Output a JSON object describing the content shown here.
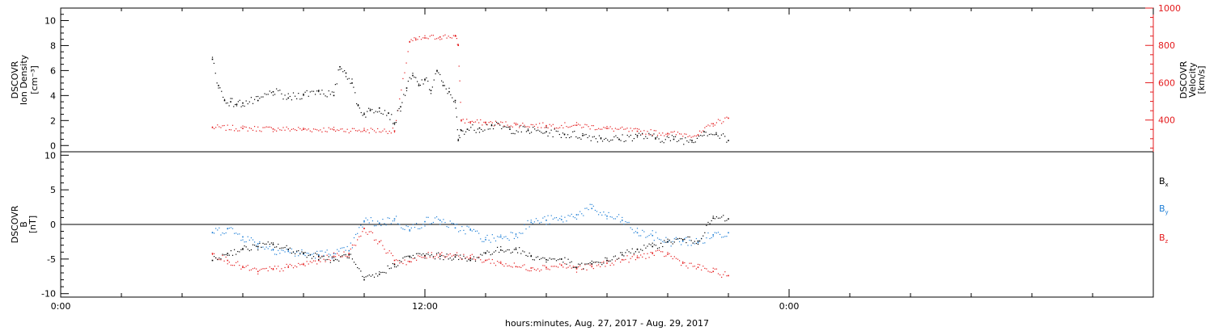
{
  "chart_data": [
    {
      "type": "scatter",
      "panel": "top",
      "ylabel_left": [
        "DSCOVR",
        "Ion Density",
        "[cm⁻³]"
      ],
      "ylabel_right": [
        "DSCOVR",
        "Velocity",
        "[km/s]"
      ],
      "ylim_left": [
        -0.5,
        11
      ],
      "yticks_left": [
        0,
        2,
        4,
        6,
        8,
        10
      ],
      "ylim_right": [
        230,
        1000
      ],
      "yticks_right": [
        400,
        600,
        800,
        1000
      ],
      "colors": {
        "density": "#000000",
        "velocity": "#e41a1c"
      },
      "series": [
        {
          "key": "density",
          "color": "#000000",
          "x": [
            5.0,
            5.2,
            5.4,
            5.6,
            5.8,
            6.0,
            6.5,
            7.0,
            7.5,
            8.0,
            8.5,
            9.0,
            9.2,
            9.4,
            9.6,
            9.8,
            10.0,
            10.2,
            10.5,
            10.8,
            11.0,
            11.2,
            11.4,
            11.6,
            11.8,
            12.0,
            12.2,
            12.4,
            12.6,
            12.8,
            13.0,
            13.1,
            13.2,
            13.4,
            13.8,
            14.2,
            14.8,
            15.4,
            16.0,
            16.6,
            17.2,
            17.8,
            18.4,
            19.0,
            19.6,
            20.2,
            20.8,
            21.2,
            21.6,
            22.0
          ],
          "y": [
            6.9,
            4.8,
            3.6,
            3.5,
            3.3,
            3.4,
            3.6,
            4.3,
            3.8,
            4.1,
            4.4,
            4.0,
            6.3,
            5.8,
            5.0,
            3.2,
            2.5,
            2.8,
            3.0,
            2.6,
            1.8,
            3.1,
            4.6,
            5.6,
            4.8,
            5.3,
            4.4,
            6.0,
            4.8,
            4.3,
            3.6,
            0.4,
            1.2,
            1.3,
            1.4,
            1.6,
            1.3,
            1.2,
            1.1,
            0.9,
            0.8,
            0.6,
            0.5,
            0.8,
            0.6,
            0.5,
            0.4,
            1.1,
            0.9,
            0.4
          ]
        },
        {
          "key": "velocity",
          "color": "#e41a1c",
          "x": [
            5.0,
            6.0,
            7.0,
            8.0,
            9.0,
            10.0,
            11.0,
            11.5,
            11.7,
            12.0,
            12.5,
            13.0,
            13.1,
            13.2,
            13.5,
            14.0,
            15.0,
            16.0,
            17.0,
            18.0,
            19.0,
            20.0,
            21.0,
            21.5,
            22.0
          ],
          "y": [
            360,
            355,
            352,
            350,
            348,
            345,
            342,
            820,
            830,
            840,
            845,
            850,
            800,
            400,
            390,
            385,
            375,
            370,
            372,
            355,
            340,
            328,
            320,
            380,
            410
          ]
        }
      ]
    },
    {
      "type": "scatter",
      "panel": "bottom",
      "ylabel_left": [
        "DSCOVR",
        "B",
        "[nT]"
      ],
      "ylim": [
        -10.5,
        10.5
      ],
      "yticks": [
        -10,
        -5,
        0,
        5,
        10
      ],
      "zero_line": true,
      "legend": [
        {
          "label": "B",
          "sub": "x",
          "color": "#000000"
        },
        {
          "label": "B",
          "sub": "y",
          "color": "#1f7fd6"
        },
        {
          "label": "B",
          "sub": "z",
          "color": "#e41a1c"
        }
      ],
      "series": [
        {
          "key": "Bx",
          "color": "#000000",
          "x": [
            5.0,
            5.5,
            6.0,
            6.5,
            7.0,
            7.5,
            8.0,
            8.5,
            9.0,
            9.5,
            10.0,
            10.5,
            11.0,
            11.5,
            12.0,
            12.5,
            13.0,
            13.5,
            14.0,
            14.5,
            15.0,
            15.5,
            16.0,
            16.5,
            17.0,
            17.5,
            18.0,
            18.5,
            19.0,
            19.5,
            20.0,
            20.5,
            21.0,
            21.5,
            22.0
          ],
          "y": [
            -5.2,
            -4.2,
            -3.6,
            -3.2,
            -2.9,
            -3.6,
            -4.2,
            -4.6,
            -5.2,
            -4.4,
            -8.0,
            -7.2,
            -5.8,
            -4.6,
            -4.5,
            -4.6,
            -4.7,
            -5.2,
            -4.1,
            -3.7,
            -3.6,
            -4.6,
            -5.1,
            -5.0,
            -6.2,
            -5.7,
            -5.2,
            -4.4,
            -3.6,
            -3.2,
            -2.5,
            -2.2,
            -2.4,
            0.9,
            0.8
          ]
        },
        {
          "key": "By",
          "color": "#1f7fd6",
          "x": [
            5.0,
            5.5,
            6.0,
            6.5,
            7.0,
            7.5,
            8.0,
            8.5,
            9.0,
            9.5,
            10.0,
            10.5,
            11.0,
            11.5,
            12.0,
            12.5,
            13.0,
            13.5,
            14.0,
            14.5,
            15.0,
            15.5,
            16.0,
            16.5,
            17.0,
            17.5,
            18.0,
            18.5,
            19.0,
            19.5,
            20.0,
            20.5,
            21.0,
            21.5,
            22.0
          ],
          "y": [
            -1.2,
            -0.6,
            -1.8,
            -2.8,
            -3.6,
            -3.9,
            -4.3,
            -4.4,
            -4.2,
            -3.8,
            0.5,
            0.2,
            0.8,
            -0.8,
            0.4,
            0.6,
            -0.5,
            -0.8,
            -2.2,
            -1.8,
            -1.4,
            0.3,
            0.6,
            0.7,
            1.4,
            2.3,
            1.2,
            0.6,
            -1.2,
            -1.6,
            -2.5,
            -2.4,
            -2.6,
            -1.5,
            -1.2
          ]
        },
        {
          "key": "Bz",
          "color": "#e41a1c",
          "x": [
            5.0,
            5.5,
            6.0,
            6.5,
            7.0,
            7.5,
            8.0,
            8.5,
            9.0,
            9.5,
            10.0,
            10.5,
            11.0,
            11.5,
            12.0,
            12.5,
            13.0,
            13.5,
            14.0,
            14.5,
            15.0,
            15.5,
            16.0,
            16.5,
            17.0,
            17.5,
            18.0,
            18.5,
            19.0,
            19.5,
            20.0,
            20.5,
            21.0,
            21.5,
            22.0
          ],
          "y": [
            -4.2,
            -5.2,
            -6.2,
            -6.8,
            -6.5,
            -6.2,
            -5.8,
            -5.2,
            -4.6,
            -4.2,
            -0.6,
            -2.5,
            -5.2,
            -5.4,
            -4.6,
            -4.3,
            -4.4,
            -4.8,
            -5.2,
            -5.6,
            -6.1,
            -6.3,
            -6.2,
            -5.9,
            -6.4,
            -6.1,
            -5.6,
            -5.1,
            -4.8,
            -4.2,
            -4.3,
            -5.6,
            -6.2,
            -6.8,
            -7.4
          ]
        }
      ]
    }
  ],
  "xaxis": {
    "ticks": [
      {
        "label": "0:00",
        "hour": 0
      },
      {
        "label": "12:00",
        "hour": 12
      },
      {
        "label": "0:00",
        "hour": 24
      }
    ],
    "xlim": [
      0,
      36
    ],
    "title": "hours:minutes, Aug. 27, 2017 - Aug. 29, 2017"
  }
}
